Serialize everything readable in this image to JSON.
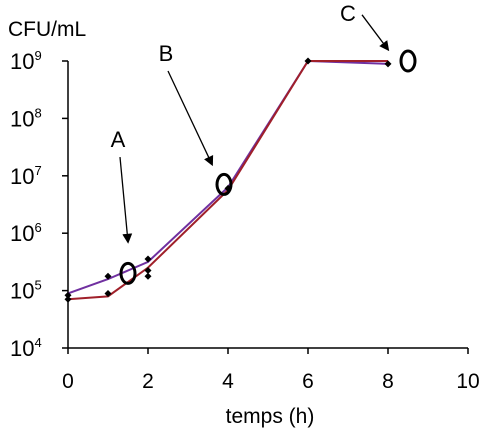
{
  "chart_data": {
    "type": "line",
    "ylabel": "CFU/mL",
    "xlabel": "temps (h)",
    "xlim": [
      0,
      10
    ],
    "ylim_log10": [
      4,
      9
    ],
    "y_scale": "log",
    "x_ticks": [
      "0",
      "2",
      "4",
      "6",
      "8",
      "10"
    ],
    "y_ticks": [
      {
        "base": "10",
        "exp": "4",
        "value": 4
      },
      {
        "base": "10",
        "exp": "5",
        "value": 5
      },
      {
        "base": "10",
        "exp": "6",
        "value": 6
      },
      {
        "base": "10",
        "exp": "7",
        "value": 7
      },
      {
        "base": "10",
        "exp": "8",
        "value": 8
      },
      {
        "base": "10",
        "exp": "9",
        "value": 9
      }
    ],
    "grid": false,
    "series": [
      {
        "color": "#7030A0",
        "x": [
          0,
          1,
          2,
          4,
          6,
          8
        ],
        "y_log10": [
          4.95,
          5.2,
          5.5,
          6.8,
          9.0,
          8.95
        ]
      },
      {
        "color": "#A0202A",
        "x": [
          0,
          1,
          2,
          4,
          6,
          8
        ],
        "y_log10": [
          4.85,
          4.9,
          5.4,
          6.75,
          9.0,
          9.0
        ]
      }
    ],
    "scatter_points": {
      "color": "#000000",
      "x": [
        0,
        0,
        1,
        1,
        2,
        2,
        2,
        4,
        6,
        8
      ],
      "y_log10": [
        4.92,
        4.85,
        5.25,
        4.95,
        5.55,
        5.35,
        5.25,
        6.78,
        9.0,
        8.95
      ]
    },
    "annotations": [
      {
        "label": "A",
        "text_x": 1.25,
        "text_y_log10": 7.5,
        "arrow_to_x": 1.5,
        "arrow_to_y_log10": 5.85,
        "circle_x": 1.5,
        "circle_y_log10": 5.3
      },
      {
        "label": "B",
        "text_x": 2.45,
        "text_y_log10": 9.0,
        "arrow_to_x": 3.6,
        "arrow_to_y_log10": 7.2,
        "circle_x": 3.9,
        "circle_y_log10": 6.85
      },
      {
        "label": "C",
        "text_x": 7.0,
        "text_y_log10": 9.7,
        "arrow_to_x": 8.0,
        "arrow_to_y_log10": 9.2,
        "circle_x": 8.5,
        "circle_y_log10": 9.0
      }
    ]
  }
}
